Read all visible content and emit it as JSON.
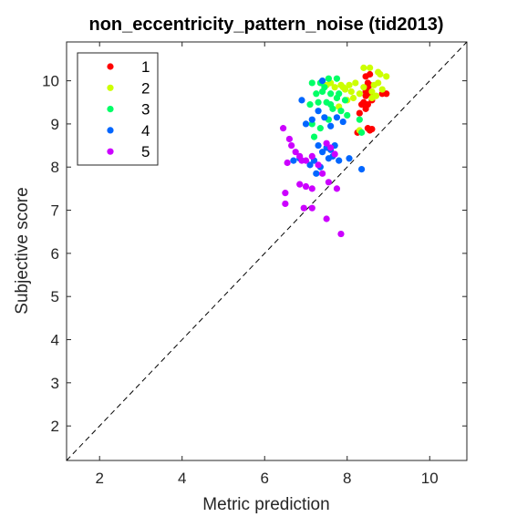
{
  "chart_data": {
    "type": "scatter",
    "title": "non_eccentricity_pattern_noise (tid2013)",
    "xlabel": "Metric prediction",
    "ylabel": "Subjective score",
    "xlim": [
      1.2,
      10.9
    ],
    "ylim": [
      1.2,
      10.9
    ],
    "xticks": [
      2,
      4,
      6,
      8,
      10
    ],
    "yticks": [
      2,
      3,
      4,
      5,
      6,
      7,
      8,
      9,
      10
    ],
    "grid": false,
    "reference_line": "y = x (dashed, black)",
    "legend_position": "top-left",
    "series": [
      {
        "name": "1",
        "color": "#ff0000",
        "points": [
          [
            8.45,
            10.1
          ],
          [
            8.5,
            9.95
          ],
          [
            8.55,
            9.9
          ],
          [
            8.5,
            9.8
          ],
          [
            8.45,
            9.75
          ],
          [
            8.55,
            9.7
          ],
          [
            8.45,
            9.65
          ],
          [
            8.6,
            9.55
          ],
          [
            8.4,
            9.5
          ],
          [
            8.5,
            9.45
          ],
          [
            8.45,
            9.35
          ],
          [
            8.35,
            9.45
          ],
          [
            8.3,
            9.25
          ],
          [
            8.25,
            8.8
          ],
          [
            8.5,
            8.9
          ],
          [
            8.55,
            8.85
          ],
          [
            8.6,
            8.88
          ],
          [
            8.85,
            9.7
          ],
          [
            8.95,
            9.7
          ],
          [
            8.55,
            10.15
          ]
        ]
      },
      {
        "name": "2",
        "color": "#ccff00",
        "points": [
          [
            8.4,
            10.3
          ],
          [
            8.55,
            10.3
          ],
          [
            8.75,
            10.2
          ],
          [
            8.8,
            10.15
          ],
          [
            8.95,
            10.1
          ],
          [
            8.75,
            9.95
          ],
          [
            8.65,
            9.9
          ],
          [
            8.85,
            9.8
          ],
          [
            8.6,
            9.75
          ],
          [
            8.4,
            9.85
          ],
          [
            8.3,
            9.7
          ],
          [
            8.1,
            9.75
          ],
          [
            7.9,
            9.85
          ],
          [
            7.85,
            9.9
          ],
          [
            7.7,
            9.85
          ],
          [
            8.05,
            9.9
          ],
          [
            8.2,
            9.95
          ],
          [
            7.75,
            9.6
          ],
          [
            8.0,
            9.55
          ],
          [
            8.15,
            9.6
          ],
          [
            7.8,
            9.4
          ],
          [
            8.3,
            8.85
          ],
          [
            7.6,
            9.95
          ],
          [
            7.5,
            9.9
          ],
          [
            7.95,
            9.8
          ],
          [
            8.6,
            9.6
          ],
          [
            8.7,
            9.65
          ]
        ]
      },
      {
        "name": "3",
        "color": "#00ff66",
        "points": [
          [
            7.15,
            9.95
          ],
          [
            7.35,
            9.95
          ],
          [
            7.55,
            10.05
          ],
          [
            7.75,
            10.05
          ],
          [
            7.25,
            9.7
          ],
          [
            7.4,
            9.75
          ],
          [
            7.6,
            9.7
          ],
          [
            7.8,
            9.7
          ],
          [
            7.1,
            9.45
          ],
          [
            7.3,
            9.5
          ],
          [
            7.5,
            9.5
          ],
          [
            7.6,
            9.45
          ],
          [
            7.85,
            9.3
          ],
          [
            8.0,
            9.2
          ],
          [
            8.3,
            9.1
          ],
          [
            7.15,
            9.0
          ],
          [
            7.35,
            8.9
          ],
          [
            7.55,
            9.1
          ],
          [
            7.2,
            8.7
          ],
          [
            7.75,
            9.6
          ],
          [
            7.95,
            9.55
          ],
          [
            8.35,
            8.8
          ],
          [
            7.45,
            9.85
          ],
          [
            7.65,
            9.35
          ]
        ]
      },
      {
        "name": "4",
        "color": "#0066ff",
        "points": [
          [
            6.9,
            9.55
          ],
          [
            7.0,
            9.0
          ],
          [
            7.15,
            9.1
          ],
          [
            7.3,
            9.3
          ],
          [
            7.4,
            10.0
          ],
          [
            7.45,
            9.15
          ],
          [
            7.6,
            8.95
          ],
          [
            7.75,
            9.15
          ],
          [
            7.9,
            9.05
          ],
          [
            7.3,
            8.5
          ],
          [
            7.4,
            8.35
          ],
          [
            7.5,
            8.45
          ],
          [
            7.7,
            8.5
          ],
          [
            7.2,
            8.15
          ],
          [
            7.35,
            8.0
          ],
          [
            7.55,
            8.2
          ],
          [
            7.65,
            8.25
          ],
          [
            6.7,
            8.15
          ],
          [
            6.85,
            8.2
          ],
          [
            7.25,
            7.85
          ],
          [
            7.8,
            8.15
          ],
          [
            8.05,
            8.2
          ],
          [
            8.35,
            7.95
          ],
          [
            7.1,
            8.05
          ],
          [
            7.6,
            8.4
          ]
        ]
      },
      {
        "name": "5",
        "color": "#cc00ff",
        "points": [
          [
            6.45,
            8.9
          ],
          [
            6.6,
            8.65
          ],
          [
            6.65,
            8.5
          ],
          [
            6.75,
            8.35
          ],
          [
            6.85,
            8.25
          ],
          [
            6.9,
            8.15
          ],
          [
            7.0,
            8.15
          ],
          [
            7.15,
            8.25
          ],
          [
            7.3,
            8.05
          ],
          [
            7.5,
            8.55
          ],
          [
            7.6,
            8.45
          ],
          [
            7.7,
            8.3
          ],
          [
            7.4,
            7.85
          ],
          [
            6.85,
            7.6
          ],
          [
            7.0,
            7.55
          ],
          [
            7.15,
            7.5
          ],
          [
            7.55,
            7.65
          ],
          [
            7.75,
            7.5
          ],
          [
            6.5,
            7.4
          ],
          [
            6.5,
            7.15
          ],
          [
            6.95,
            7.05
          ],
          [
            7.15,
            7.05
          ],
          [
            7.5,
            6.8
          ],
          [
            7.85,
            6.45
          ],
          [
            6.55,
            8.1
          ]
        ]
      }
    ]
  }
}
